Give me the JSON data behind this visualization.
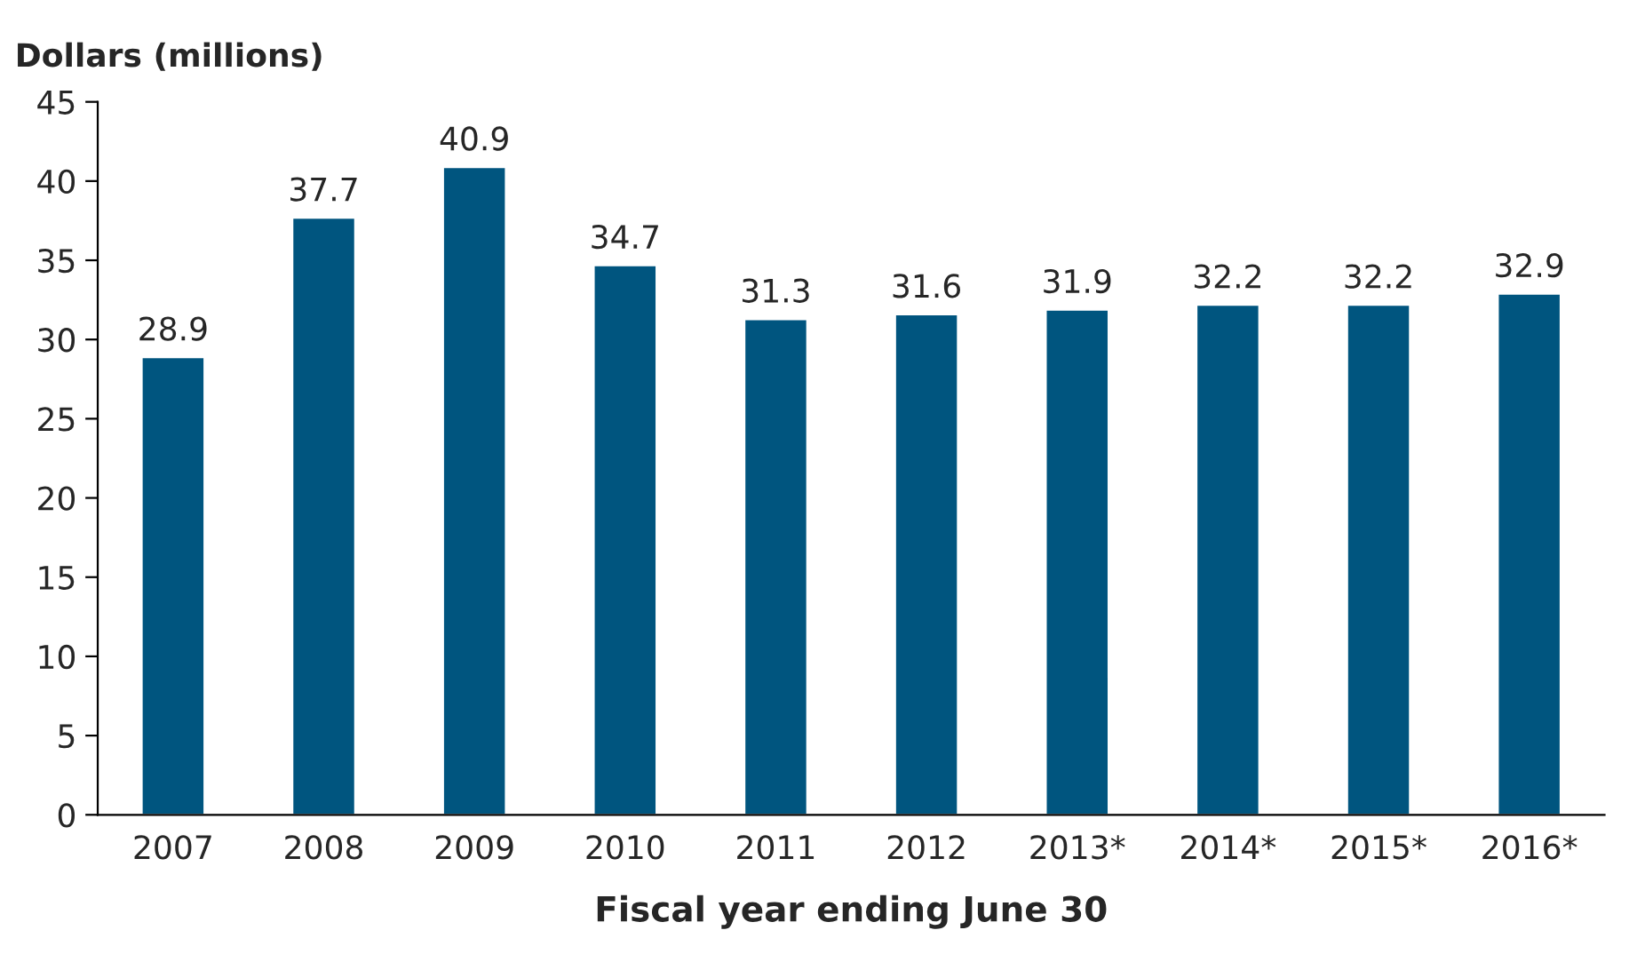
{
  "chart_data": {
    "type": "bar",
    "ylabel": "Dollars (millions)",
    "xlabel": "Fiscal year ending June 30",
    "categories": [
      "2007",
      "2008",
      "2009",
      "2010",
      "2011",
      "2012",
      "2013*",
      "2014*",
      "2015*",
      "2016*"
    ],
    "values": [
      28.9,
      37.7,
      40.9,
      34.7,
      31.3,
      31.6,
      31.9,
      32.2,
      32.2,
      32.9
    ],
    "color": "#00557f",
    "ylim": [
      0,
      45
    ],
    "yticks": [
      0,
      5,
      10,
      15,
      20,
      25,
      30,
      35,
      40,
      45
    ],
    "data_labels": true,
    "grid": false,
    "legend": false
  }
}
